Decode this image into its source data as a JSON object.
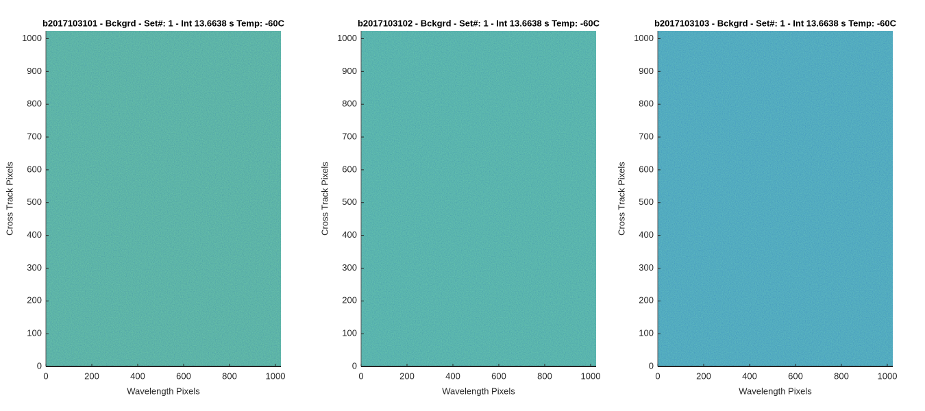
{
  "chart_data": [
    {
      "type": "image",
      "title": "b2017103101 - Bckgrd - Set#: 1 - Int 13.6638 s Temp: -60C",
      "xlabel": "Wavelength Pixels",
      "ylabel": "Cross Track Pixels",
      "color": "#2bb0a2",
      "xlim": [
        0,
        1024
      ],
      "ylim": [
        0,
        1024
      ],
      "xticks": [
        0,
        200,
        400,
        600,
        800,
        1000
      ],
      "yticks": [
        0,
        100,
        200,
        300,
        400,
        500,
        600,
        700,
        800,
        900,
        1000
      ]
    },
    {
      "type": "image",
      "title": "b2017103102 - Bckgrd - Set#: 1 - Int 13.6638 s Temp: -60C",
      "xlabel": "Wavelength Pixels",
      "ylabel": "Cross Track Pixels",
      "color": "#26b1ab",
      "xlim": [
        0,
        1024
      ],
      "ylim": [
        0,
        1024
      ],
      "xticks": [
        0,
        200,
        400,
        600,
        800,
        1000
      ],
      "yticks": [
        0,
        100,
        200,
        300,
        400,
        500,
        600,
        700,
        800,
        900,
        1000
      ]
    },
    {
      "type": "image",
      "title": "b2017103103 - Bckgrd - Set#: 1 - Int 13.6638 s Temp: -60C",
      "xlabel": "Wavelength Pixels",
      "ylabel": "Cross Track Pixels",
      "color": "#1ba3c6",
      "xlim": [
        0,
        1024
      ],
      "ylim": [
        0,
        1024
      ],
      "xticks": [
        0,
        200,
        400,
        600,
        800,
        1000
      ],
      "yticks": [
        0,
        100,
        200,
        300,
        400,
        500,
        600,
        700,
        800,
        900,
        1000
      ]
    }
  ]
}
